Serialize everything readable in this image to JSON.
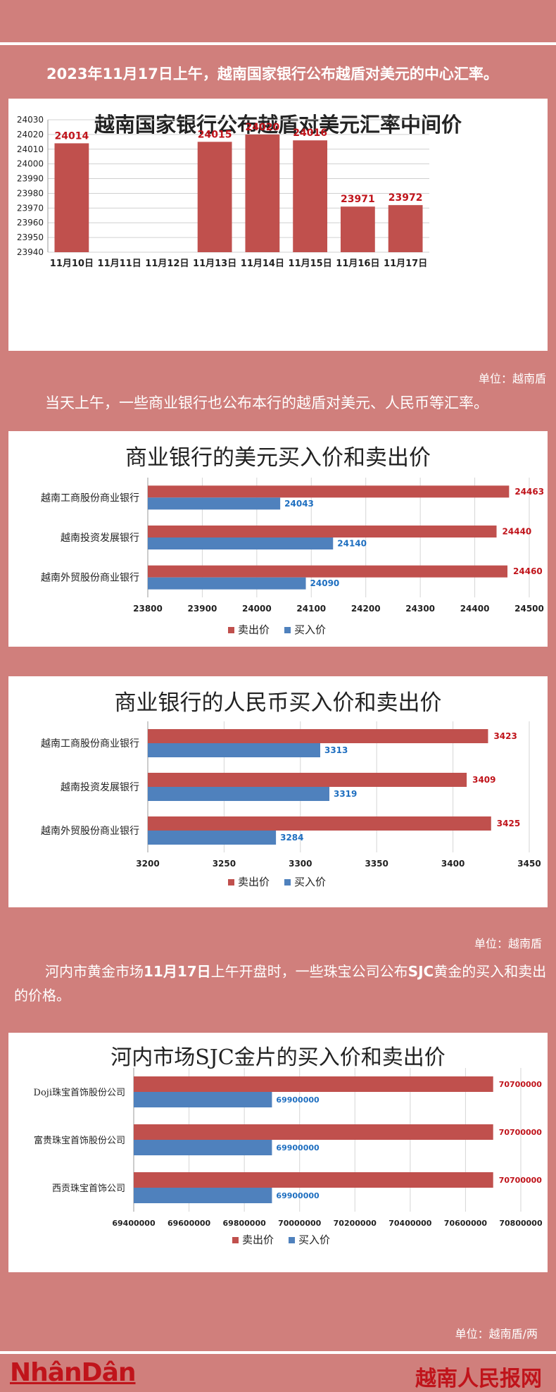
{
  "intro": {
    "p1": "2023年11月17日上午，越南国家银行公布越盾对美元的中心汇率。",
    "unit1": "单位：越南盾",
    "p2": "当天上午，一些商业银行也公布本行的越盾对美元、人民币等汇率。",
    "unit2": "单位：越南盾",
    "p3_a": "河内市黄金市场",
    "p3_b": "11月17日",
    "p3_c": "上午开盘时，一些珠宝公司公布",
    "p3_d": "SJC",
    "p3_e": "黄金的买入和卖出的价格。",
    "unit3": "单位：越南盾/两"
  },
  "colors": {
    "red": "#c0504d",
    "blue": "#4f81bd",
    "bg": "#d07f7c",
    "redlabel": "#c0141b",
    "bluelabel": "#1f6fc0"
  },
  "legend": {
    "sell": "卖出价",
    "buy": "买入价"
  },
  "footer": {
    "left": "NhânDân",
    "right": "越南人民报网"
  },
  "chart_data": [
    {
      "type": "bar",
      "title": "越南国家银行公布越盾对美元汇率中间价",
      "categories": [
        "11月10日",
        "11月11日",
        "11月12日",
        "11月13日",
        "11月14日",
        "11月15日",
        "11月16日",
        "11月17日"
      ],
      "values": [
        24014,
        null,
        null,
        24015,
        24020,
        24016,
        23971,
        23972
      ],
      "data_labels": [
        "24014",
        "",
        "",
        "24015",
        "24020",
        "24016",
        "23971",
        "23972"
      ],
      "ylim": [
        23940,
        24030
      ],
      "yticks": [
        "23940",
        "23950",
        "23960",
        "23970",
        "23980",
        "23990",
        "24000",
        "24010",
        "24020",
        "24030"
      ],
      "grid": true
    },
    {
      "type": "bar",
      "orientation": "horizontal",
      "title": "商业银行的美元买入价和卖出价",
      "categories": [
        "越南工商股份商业银行",
        "越南投资发展银行",
        "越南外贸股份商业银行"
      ],
      "series": [
        {
          "name": "卖出价",
          "values": [
            24463,
            24440,
            24460
          ]
        },
        {
          "name": "买入价",
          "values": [
            24043,
            24140,
            24090
          ]
        }
      ],
      "data_labels": {
        "sell": [
          "24463",
          "24440",
          "24460"
        ],
        "buy": [
          "24043",
          "24140",
          "24090"
        ]
      },
      "xlim": [
        23800,
        24500
      ],
      "xticks": [
        "23800",
        "23900",
        "24000",
        "24100",
        "24200",
        "24300",
        "24400",
        "24500"
      ],
      "legend": "bottom"
    },
    {
      "type": "bar",
      "orientation": "horizontal",
      "title": "商业银行的人民币买入价和卖出价",
      "categories": [
        "越南工商股份商业银行",
        "越南投资发展银行",
        "越南外贸股份商业银行"
      ],
      "series": [
        {
          "name": "卖出价",
          "values": [
            3423,
            3409,
            3425
          ]
        },
        {
          "name": "买入价",
          "values": [
            3313,
            3319,
            3284
          ]
        }
      ],
      "data_labels": {
        "sell": [
          "3423",
          "3409",
          "3425"
        ],
        "buy": [
          "3313",
          "3319",
          "3284"
        ]
      },
      "xlim": [
        3200,
        3450
      ],
      "xticks": [
        "3200",
        "3250",
        "3300",
        "3350",
        "3400",
        "3450"
      ],
      "legend": "bottom"
    },
    {
      "type": "bar",
      "orientation": "horizontal",
      "title": "河内市场SJC金片的买入价和卖出价",
      "categories": [
        "Doji珠宝首饰股份公司",
        "富贵珠宝首饰股份公司",
        "西贡珠宝首饰公司"
      ],
      "series": [
        {
          "name": "卖出价",
          "values": [
            70700000,
            70700000,
            70700000
          ]
        },
        {
          "name": "买入价",
          "values": [
            69900000,
            69900000,
            69900000
          ]
        }
      ],
      "data_labels": {
        "sell": [
          "70700000",
          "70700000",
          "70700000"
        ],
        "buy": [
          "69900000",
          "69900000",
          "69900000"
        ]
      },
      "xlim": [
        69400000,
        70800000
      ],
      "xticks": [
        "69400000",
        "69600000",
        "69800000",
        "70000000",
        "70200000",
        "70400000",
        "70600000",
        "70800000"
      ],
      "legend": "bottom"
    }
  ]
}
